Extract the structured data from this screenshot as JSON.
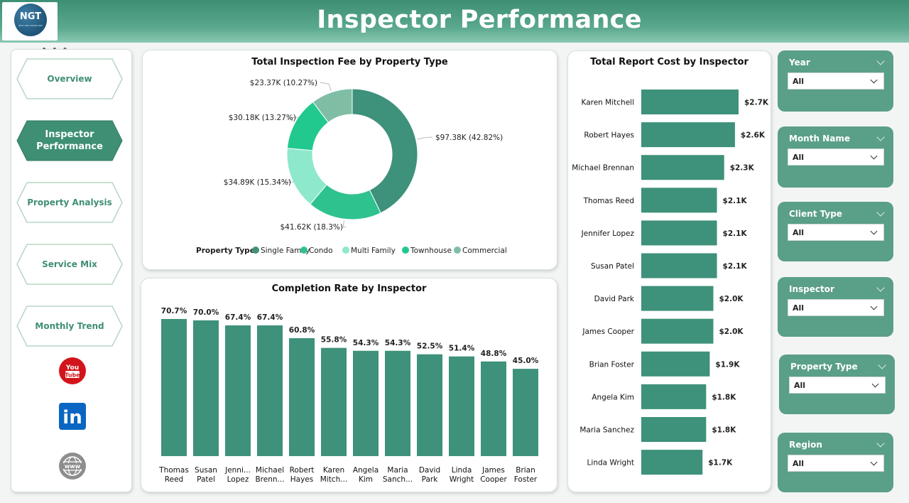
{
  "header": {
    "title": "Inspector Performance",
    "logo_text": "NGT",
    "logo_sub": "NEXT GEN TEMPLATES"
  },
  "nav": {
    "items": [
      {
        "label": "Overview",
        "active": false
      },
      {
        "label": "Inspector\nPerformance",
        "active": true
      },
      {
        "label": "Property Analysis",
        "active": false
      },
      {
        "label": "Service Mix",
        "active": false
      },
      {
        "label": "Monthly Trend",
        "active": false
      }
    ],
    "social": [
      {
        "icon": "youtube-icon",
        "text": "You\nTube"
      },
      {
        "icon": "linkedin-icon",
        "text": "in"
      },
      {
        "icon": "globe-icon",
        "text": "www"
      }
    ]
  },
  "colors": {
    "accent": "#3f8f73",
    "bar": "#3e917a",
    "slicer": "#5a9f87",
    "header": "#3d8f74"
  },
  "donut_chart": {
    "title": "Total Inspection Fee by Property Type",
    "legend_title": "Property Type",
    "chart_data": {
      "type": "pie",
      "title": "Total Inspection Fee by Property Type",
      "slices": [
        {
          "name": "Single Family",
          "value": 97.38,
          "label": "$97.38K (42.82%)",
          "color": "#3e917a"
        },
        {
          "name": "Condo",
          "value": 41.62,
          "label": "$41.62K (18.3%)",
          "color": "#2ec28f"
        },
        {
          "name": "Multi Family",
          "value": 34.89,
          "label": "$34.89K (15.34%)",
          "color": "#8ee8cc"
        },
        {
          "name": "Townhouse",
          "value": 30.18,
          "label": "$30.18K (13.27%)",
          "color": "#22c98e"
        },
        {
          "name": "Commercial",
          "value": 23.37,
          "label": "$23.37K (10.27%)",
          "color": "#7fbea5"
        }
      ],
      "unit": "$K"
    }
  },
  "completion_chart": {
    "title": "Completion Rate by Inspector",
    "chart_data": {
      "type": "bar",
      "title": "Completion Rate by Inspector",
      "categories": [
        "Thomas\nReed",
        "Susan\nPatel",
        "Jenni...\nLopez",
        "Michael\nBrenn...",
        "Robert\nHayes",
        "Karen\nMitch...",
        "Angela\nKim",
        "Maria\nSanch...",
        "David\nPark",
        "Linda\nWright",
        "James\nCooper",
        "Brian\nFoster"
      ],
      "values": [
        70.7,
        70.0,
        67.4,
        67.4,
        60.8,
        55.8,
        54.3,
        54.3,
        52.5,
        51.4,
        48.8,
        45.0
      ],
      "labels": [
        "70.7%",
        "70.0%",
        "67.4%",
        "67.4%",
        "60.8%",
        "55.8%",
        "54.3%",
        "54.3%",
        "52.5%",
        "51.4%",
        "48.8%",
        "45.0%"
      ],
      "ylim": [
        0,
        72
      ]
    }
  },
  "report_cost_chart": {
    "title": "Total Report Cost by Inspector",
    "chart_data": {
      "type": "bar",
      "orientation": "horizontal",
      "title": "Total Report Cost by Inspector",
      "categories": [
        "Karen Mitchell",
        "Robert Hayes",
        "Michael Brennan",
        "Thomas Reed",
        "Jennifer Lopez",
        "Susan Patel",
        "David Park",
        "James Cooper",
        "Brian Foster",
        "Angela Kim",
        "Maria Sanchez",
        "Linda Wright"
      ],
      "values": [
        2.7,
        2.6,
        2.3,
        2.1,
        2.1,
        2.1,
        2.0,
        2.0,
        1.9,
        1.8,
        1.8,
        1.7
      ],
      "labels": [
        "$2.7K",
        "$2.6K",
        "$2.3K",
        "$2.1K",
        "$2.1K",
        "$2.1K",
        "$2.0K",
        "$2.0K",
        "$1.9K",
        "$1.8K",
        "$1.8K",
        "$1.7K"
      ],
      "unit": "$K"
    }
  },
  "slicers": [
    {
      "label": "Year",
      "value": "All"
    },
    {
      "label": "Month Name",
      "value": "All"
    },
    {
      "label": "Client Type",
      "value": "All"
    },
    {
      "label": "Inspector",
      "value": "All"
    },
    {
      "label": "Property Type",
      "value": "All"
    },
    {
      "label": "Region",
      "value": "All"
    }
  ]
}
